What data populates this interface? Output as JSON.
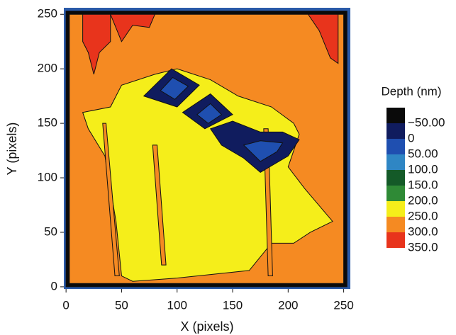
{
  "chart_data": {
    "type": "contour",
    "x_label": "X (pixels)",
    "y_label": "Y (pixels)",
    "xlim": [
      -2,
      256
    ],
    "ylim": [
      -2,
      256
    ],
    "xticks": [
      0,
      50,
      100,
      150,
      200,
      250
    ],
    "yticks": [
      0,
      50,
      100,
      150,
      200,
      250
    ],
    "colorbar": {
      "title": "Depth (nm)",
      "ticks": [
        {
          "value": -50,
          "label": "−50.00"
        },
        0,
        {
          "value": 50,
          "label": "50.00"
        },
        {
          "value": 100,
          "label": "100.0"
        },
        {
          "value": 150,
          "label": "150.0"
        },
        {
          "value": 200,
          "label": "200.0"
        },
        {
          "value": 250,
          "label": "250.0"
        },
        {
          "value": 300,
          "label": "300.0"
        },
        {
          "value": 350,
          "label": "350.0"
        }
      ],
      "colors": [
        "#0a0a0a",
        "#101c5e",
        "#1f4fb0",
        "#2f86c4",
        "#145a28",
        "#2f8a36",
        "#f5ee1a",
        "#f58a22",
        "#e8341c"
      ]
    },
    "regions": [
      {
        "level": -50,
        "points": [
          [
            0,
            0
          ],
          [
            253,
            0
          ],
          [
            253,
            253
          ],
          [
            0,
            253
          ]
        ]
      },
      {
        "level": 300,
        "points": [
          [
            3,
            3
          ],
          [
            250,
            3
          ],
          [
            250,
            250
          ],
          [
            3,
            250
          ]
        ]
      },
      {
        "level": 350,
        "points": [
          [
            15,
            250
          ],
          [
            40,
            250
          ],
          [
            40,
            225
          ],
          [
            30,
            215
          ],
          [
            25,
            195
          ],
          [
            20,
            215
          ],
          [
            15,
            225
          ]
        ]
      },
      {
        "level": 350,
        "points": [
          [
            218,
            250
          ],
          [
            245,
            250
          ],
          [
            245,
            205
          ],
          [
            238,
            210
          ],
          [
            228,
            235
          ]
        ]
      },
      {
        "level": 350,
        "points": [
          [
            40,
            250
          ],
          [
            80,
            250
          ],
          [
            75,
            238
          ],
          [
            60,
            240
          ],
          [
            50,
            225
          ],
          [
            44,
            240
          ]
        ]
      },
      {
        "level": 250,
        "points": [
          [
            15,
            160
          ],
          [
            40,
            165
          ],
          [
            50,
            185
          ],
          [
            80,
            195
          ],
          [
            100,
            200
          ],
          [
            130,
            190
          ],
          [
            155,
            175
          ],
          [
            185,
            165
          ],
          [
            205,
            150
          ],
          [
            210,
            140
          ],
          [
            200,
            110
          ],
          [
            215,
            90
          ],
          [
            240,
            60
          ],
          [
            220,
            50
          ],
          [
            205,
            40
          ],
          [
            185,
            40
          ],
          [
            165,
            15
          ],
          [
            100,
            8
          ],
          [
            60,
            5
          ],
          [
            50,
            10
          ],
          [
            45,
            60
          ],
          [
            35,
            120
          ],
          [
            20,
            145
          ]
        ]
      },
      {
        "level": 300,
        "points": [
          [
            44,
            10
          ],
          [
            48,
            10
          ],
          [
            36,
            150
          ],
          [
            33,
            150
          ]
        ]
      },
      {
        "level": 300,
        "points": [
          [
            78,
            130
          ],
          [
            82,
            130
          ],
          [
            90,
            20
          ],
          [
            86,
            20
          ]
        ]
      },
      {
        "level": 300,
        "points": [
          [
            178,
            145
          ],
          [
            182,
            145
          ],
          [
            186,
            10
          ],
          [
            182,
            10
          ]
        ]
      },
      {
        "level": 0,
        "points": [
          [
            70,
            175
          ],
          [
            95,
            200
          ],
          [
            120,
            185
          ],
          [
            100,
            165
          ]
        ]
      },
      {
        "level": 0,
        "points": [
          [
            105,
            160
          ],
          [
            130,
            177
          ],
          [
            150,
            158
          ],
          [
            125,
            145
          ]
        ]
      },
      {
        "level": 0,
        "points": [
          [
            130,
            145
          ],
          [
            150,
            152
          ],
          [
            175,
            142
          ],
          [
            195,
            142
          ],
          [
            210,
            135
          ],
          [
            200,
            120
          ],
          [
            175,
            105
          ],
          [
            160,
            118
          ],
          [
            140,
            130
          ]
        ]
      },
      {
        "level": 50,
        "points": [
          [
            85,
            180
          ],
          [
            96,
            192
          ],
          [
            110,
            184
          ],
          [
            98,
            172
          ]
        ]
      },
      {
        "level": 50,
        "points": [
          [
            118,
            158
          ],
          [
            130,
            168
          ],
          [
            140,
            158
          ],
          [
            128,
            150
          ]
        ]
      },
      {
        "level": 50,
        "points": [
          [
            160,
            130
          ],
          [
            175,
            134
          ],
          [
            195,
            132
          ],
          [
            190,
            124
          ],
          [
            175,
            115
          ]
        ]
      }
    ]
  }
}
